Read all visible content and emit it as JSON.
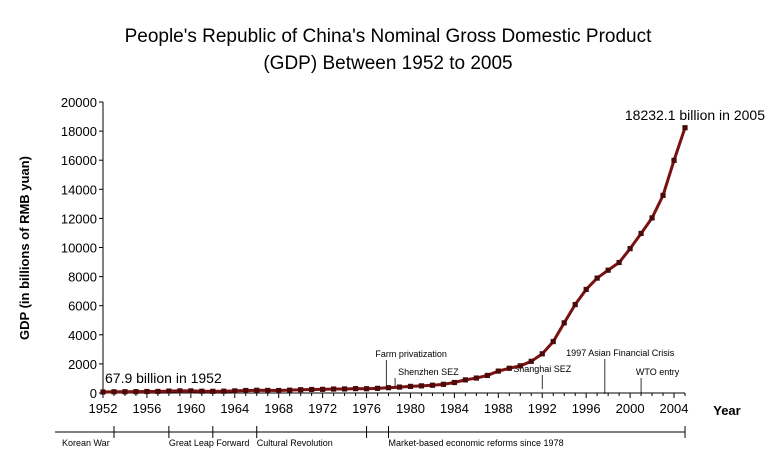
{
  "chart_data": {
    "type": "line",
    "title_line1": "People's Republic of China's Nominal Gross Domestic Product",
    "title_line2": "(GDP) Between 1952 to 2005",
    "xlabel": "Year",
    "ylabel": "GDP (in billions of RMB yuan)",
    "xlim": [
      1952,
      2005
    ],
    "ylim": [
      0,
      20000
    ],
    "yticks": [
      0,
      2000,
      4000,
      6000,
      8000,
      10000,
      12000,
      14000,
      16000,
      18000,
      20000
    ],
    "xticks": [
      1952,
      1956,
      1960,
      1964,
      1968,
      1972,
      1976,
      1980,
      1984,
      1988,
      1992,
      1996,
      2000,
      2004
    ],
    "series": [
      {
        "color": "#7a1010",
        "marker_color": "#4a0a0a",
        "x": [
          1952,
          1953,
          1954,
          1955,
          1956,
          1957,
          1958,
          1959,
          1960,
          1961,
          1962,
          1963,
          1964,
          1965,
          1966,
          1967,
          1968,
          1969,
          1970,
          1971,
          1972,
          1973,
          1974,
          1975,
          1976,
          1977,
          1978,
          1979,
          1980,
          1981,
          1982,
          1983,
          1984,
          1985,
          1986,
          1987,
          1988,
          1989,
          1990,
          1991,
          1992,
          1993,
          1994,
          1995,
          1996,
          1997,
          1998,
          1999,
          2000,
          2001,
          2002,
          2003,
          2004,
          2005
        ],
        "y": [
          67.9,
          82.4,
          85.9,
          91,
          102.8,
          106.8,
          130.7,
          143.9,
          145.7,
          122,
          114.9,
          123.3,
          145.4,
          171.6,
          186.8,
          177.4,
          172.3,
          193.8,
          225.3,
          242.6,
          251.8,
          272.1,
          279,
          299.7,
          294.4,
          320.2,
          364.5,
          406.3,
          454.6,
          489.2,
          532.3,
          596.3,
          720.8,
          901.6,
          1027.5,
          1205.9,
          1504.3,
          1699.2,
          1866.8,
          2178.2,
          2692.3,
          3533.3,
          4819.8,
          6079.4,
          7117.7,
          7897.3,
          8440.2,
          8967.7,
          9921.5,
          10965.5,
          12033.3,
          13582.3,
          15987.8,
          18232.1
        ]
      }
    ],
    "annotations": {
      "start_label": "67.9 billion in 1952",
      "end_label": "18232.1 billion in 2005"
    },
    "events": [
      {
        "label": "Farm privatization",
        "year": 1978
      },
      {
        "label": "Shenzhen SEZ",
        "year": 1979
      },
      {
        "label": "Shanghai SEZ",
        "year": 1992
      },
      {
        "label": "1997 Asian Financial Crisis",
        "year": 1997
      },
      {
        "label": "WTO entry",
        "year": 2001
      }
    ],
    "periods": [
      {
        "label": "Korean War",
        "start": 1950,
        "end": 1953
      },
      {
        "label": "Great Leap Forward",
        "start": 1958,
        "end": 1962
      },
      {
        "label": "Cultural Revolution",
        "start": 1966,
        "end": 1976
      },
      {
        "label": "Market-based economic reforms since 1978",
        "start": 1978,
        "end": 2005
      }
    ]
  }
}
